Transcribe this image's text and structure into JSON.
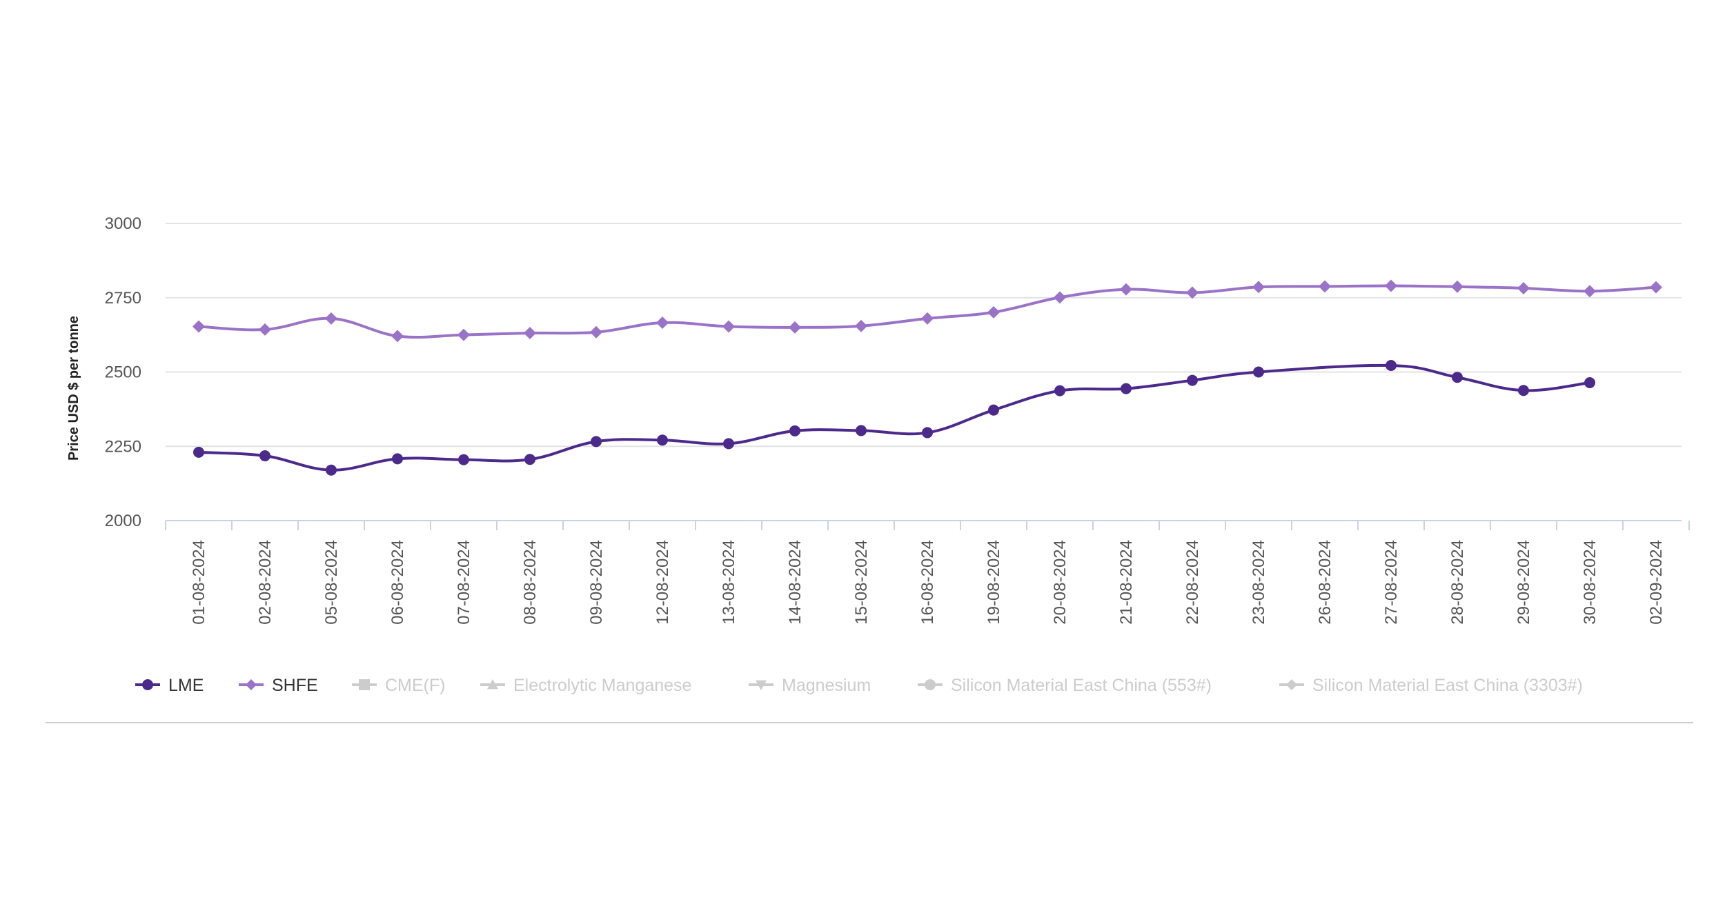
{
  "chart_data": {
    "type": "line",
    "title": "",
    "xlabel": "",
    "ylabel": "Price USD $ per tonne",
    "ylim": [
      2000,
      3000
    ],
    "yticks": [
      "3000",
      "2750",
      "2500",
      "2250",
      "2000"
    ],
    "grid": true,
    "legend_position": "bottom-left",
    "categories": [
      "01-08-2024",
      "02-08-2024",
      "05-08-2024",
      "06-08-2024",
      "07-08-2024",
      "08-08-2024",
      "09-08-2024",
      "12-08-2024",
      "13-08-2024",
      "14-08-2024",
      "15-08-2024",
      "16-08-2024",
      "19-08-2024",
      "20-08-2024",
      "21-08-2024",
      "22-08-2024",
      "23-08-2024",
      "26-08-2024",
      "27-08-2024",
      "28-08-2024",
      "29-08-2024",
      "30-08-2024",
      "02-09-2024"
    ],
    "series": [
      {
        "name": "LME",
        "color": "#4b2a8c",
        "marker": "circle",
        "visible": true,
        "values": [
          2230,
          2218,
          2170,
          2208,
          2205,
          2206,
          2266,
          2271,
          2259,
          2302,
          2303,
          2296,
          2372,
          2437,
          2444,
          2472,
          2500,
          null,
          2522,
          2482,
          2438,
          2464,
          null
        ]
      },
      {
        "name": "SHFE",
        "color": "#9a73c8",
        "marker": "diamond",
        "visible": true,
        "values": [
          2653,
          2643,
          2680,
          2621,
          2625,
          2631,
          2634,
          2666,
          2653,
          2650,
          2655,
          2680,
          2701,
          2751,
          2778,
          2767,
          2786,
          2788,
          2790,
          2787,
          2782,
          2772,
          2785
        ]
      }
    ],
    "legend": [
      {
        "name": "LME",
        "icon": "circle-marker",
        "active": true
      },
      {
        "name": "SHFE",
        "icon": "diamond-marker",
        "active": true
      },
      {
        "name": "CME(F)",
        "icon": "square-marker",
        "active": false
      },
      {
        "name": "Electrolytic Manganese",
        "icon": "triangle-marker",
        "active": false
      },
      {
        "name": "Magnesium",
        "icon": "triangle-down-marker",
        "active": false
      },
      {
        "name": "Silicon Material East China (553#)",
        "icon": "circle-marker",
        "active": false
      },
      {
        "name": "Silicon Material East China (3303#)",
        "icon": "diamond-marker",
        "active": false
      }
    ],
    "legend_colors": {
      "active_text": "#333333",
      "inactive": "#cccccc"
    }
  }
}
